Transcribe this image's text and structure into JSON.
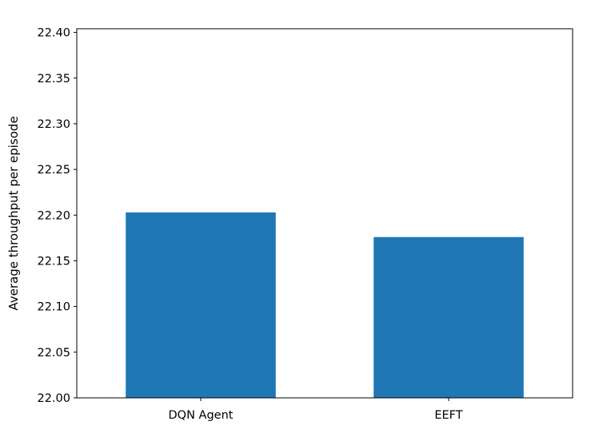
{
  "chart_data": {
    "type": "bar",
    "title": "",
    "xlabel": "",
    "ylabel": "Average throughput per episode",
    "categories": [
      "DQN Agent",
      "EEFT"
    ],
    "values": [
      22.203,
      22.176
    ],
    "ylim": [
      22.0,
      22.404
    ],
    "yticks": [
      "22.00",
      "22.05",
      "22.10",
      "22.15",
      "22.20",
      "22.25",
      "22.30",
      "22.35",
      "22.40"
    ],
    "grid": false,
    "legend": "none",
    "bar_color": "#1f77b4"
  }
}
